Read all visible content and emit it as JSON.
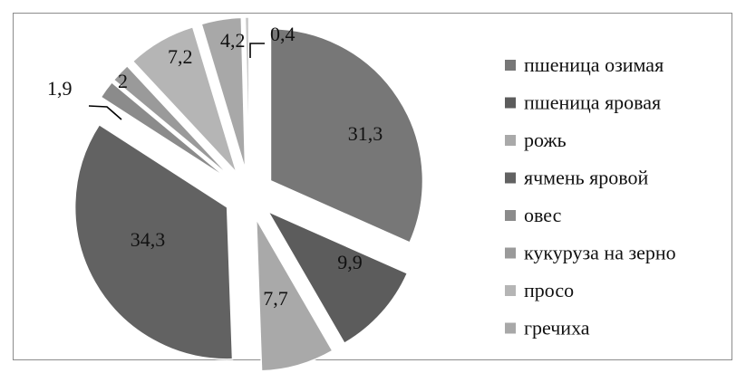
{
  "chart_data": {
    "type": "pie",
    "title": "",
    "legend_position": "right",
    "categories": [
      "пшеница озимая",
      "пшеница яровая",
      "рожь",
      "ячмень яровой",
      "овес",
      "кукуруза на зерно",
      "просо",
      "гречиха"
    ],
    "value_labels": [
      "31,3",
      "9,9",
      "7,7",
      "34,3",
      "1,9",
      "2",
      "7,2",
      "4,2",
      "0,4"
    ],
    "slices": [
      {
        "value": 31.3,
        "label": "31,3",
        "legend_index": 0,
        "color": "#777777"
      },
      {
        "value": 9.9,
        "label": "9,9",
        "legend_index": 1,
        "color": "#5c5c5c"
      },
      {
        "value": 7.7,
        "label": "7,7",
        "legend_index": 2,
        "color": "#a9a9a9"
      },
      {
        "value": 34.3,
        "label": "34,3",
        "legend_index": 3,
        "color": "#626262"
      },
      {
        "value": 1.9,
        "label": "1,9",
        "legend_index": 4,
        "color": "#8b8b8b"
      },
      {
        "value": 2,
        "label": "2",
        "legend_index": 5,
        "color": "#9a9a9a"
      },
      {
        "value": 7.2,
        "label": "7,2",
        "legend_index": 6,
        "color": "#b5b5b5"
      },
      {
        "value": 4.2,
        "label": "4,2",
        "legend_index": 7,
        "color": "#a8a8a8"
      },
      {
        "value": 0.4,
        "label": "0,4",
        "legend_index": null,
        "color": "#c8c8c8"
      }
    ],
    "legend_colors": [
      "#777777",
      "#5c5c5c",
      "#a9a9a9",
      "#626262",
      "#8b8b8b",
      "#9a9a9a",
      "#b5b5b5",
      "#a8a8a8"
    ]
  }
}
